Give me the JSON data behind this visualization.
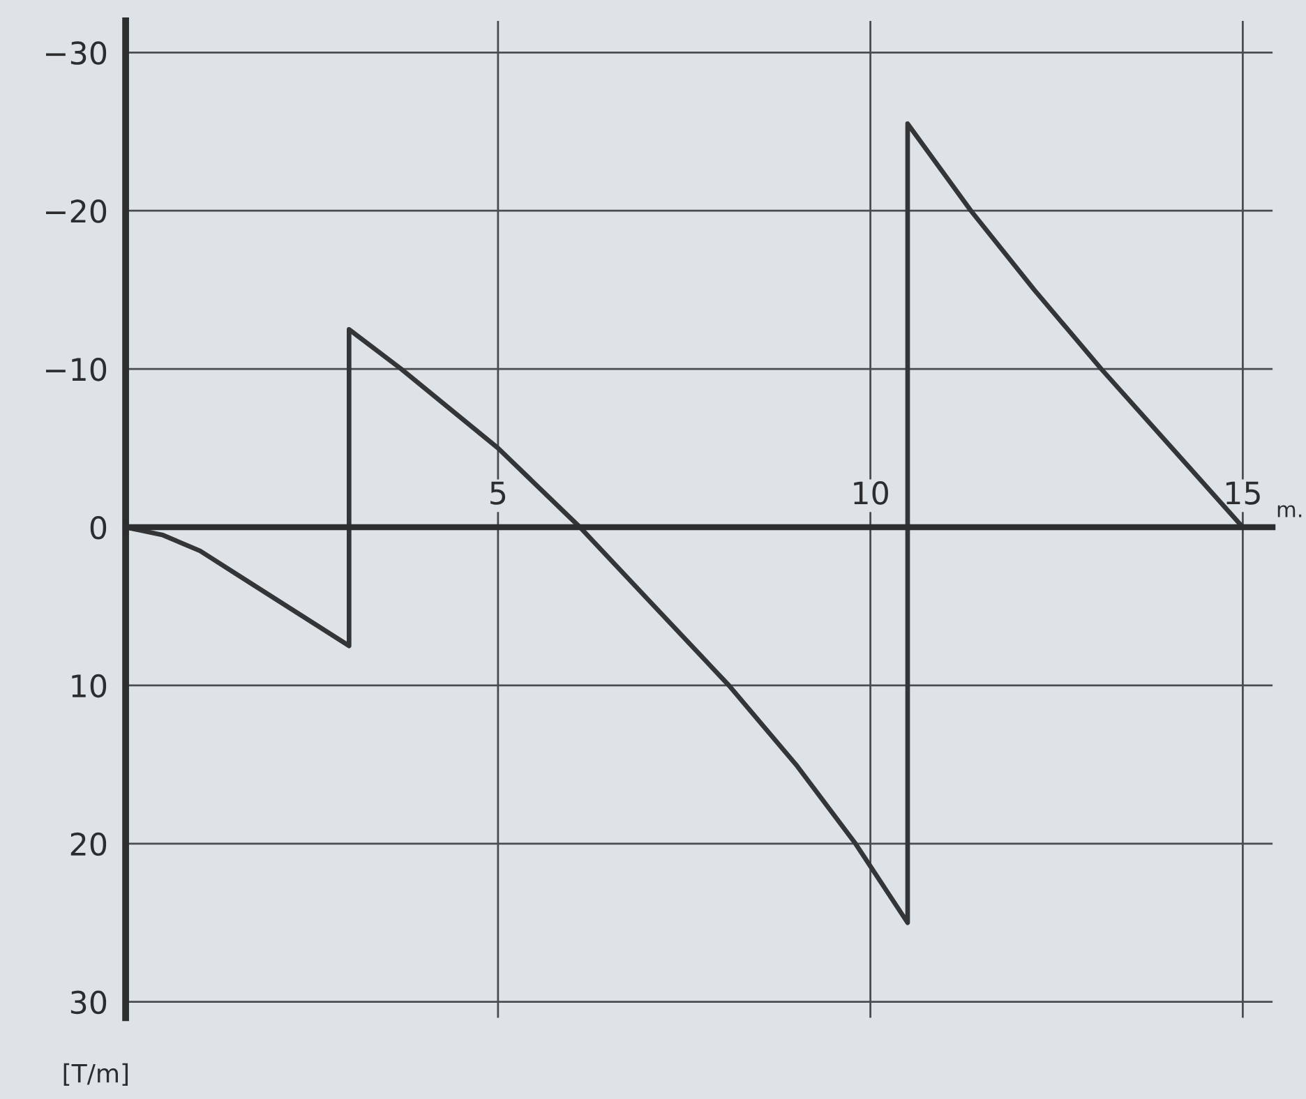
{
  "chart_data": {
    "type": "line",
    "xlabel": "m.",
    "ylabel": "[T/m]",
    "series": [
      {
        "color": "#333536",
        "x": [
          0,
          0.5,
          1,
          1.5,
          2,
          2.5,
          3,
          3,
          3.7,
          5,
          6.1,
          7.1,
          8.1,
          9,
          9.8,
          10.5,
          10.5,
          11.35,
          12.2,
          13.1,
          14.05,
          15
        ],
        "values": [
          0,
          0.5,
          1.5,
          3,
          4.5,
          6,
          7.5,
          -12.5,
          -10,
          -5,
          0,
          5,
          10,
          15,
          20,
          25,
          -25.5,
          -20,
          -15,
          -10,
          -5,
          0
        ]
      }
    ],
    "xlim": [
      0,
      15.4
    ],
    "ylim": [
      31,
      -32
    ],
    "xticks": [
      5,
      10,
      15
    ],
    "yticks": [
      {
        "value": -30,
        "label": "−30"
      },
      {
        "value": -20,
        "label": "−20"
      },
      {
        "value": -10,
        "label": "−10"
      },
      0,
      10,
      20,
      30
    ],
    "grid": true,
    "line_style": "solid"
  }
}
